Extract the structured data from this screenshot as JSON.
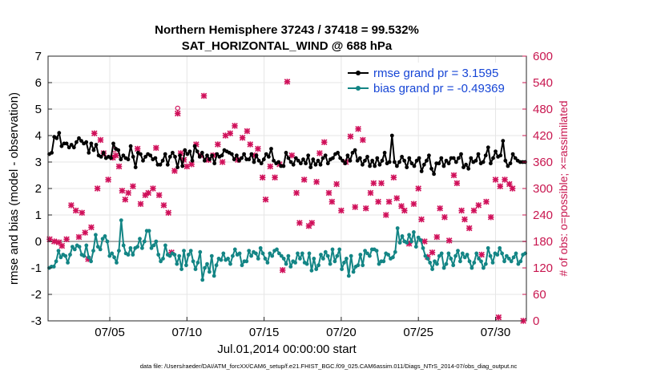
{
  "chart_data": {
    "type": "line",
    "title_line1": "Northern Hemisphere 37243 / 37418 = 99.532%",
    "title_line2": "SAT_HORIZONTAL_WIND @ 688 hPa",
    "xlabel": "Jul.01,2014 00:00:00 start",
    "ylabel": "rmse and bias (model - observation)",
    "ylabel_right": "# of obs: o=possible; ×=assimilated",
    "footnote": "data file: /Users/raeder/DAI/ATM_forcXX/CAM6_setup/f.e21.FHIST_BGC.f09_025.CAM6assim.011/Diags_NTrS_2014-07/obs_diag_output.nc",
    "xlim": [
      1,
      32
    ],
    "ylim": [
      -3,
      7
    ],
    "ylim_right": [
      0,
      600
    ],
    "xticks": [
      5,
      10,
      15,
      20,
      25,
      30
    ],
    "xtick_labels": [
      "07/05",
      "07/10",
      "07/15",
      "07/20",
      "07/25",
      "07/30"
    ],
    "yticks": [
      "-3",
      "-2",
      "-1",
      "0",
      "1",
      "2",
      "3",
      "4",
      "5",
      "6",
      "7"
    ],
    "yticks_right": [
      "0",
      "60",
      "120",
      "180",
      "240",
      "300",
      "360",
      "420",
      "480",
      "540",
      "600"
    ],
    "reference_line": 0,
    "colors": {
      "rmse": "#000000",
      "bias": "#138585",
      "obs": "#d0105a",
      "legend_text": "#1746d6",
      "zero_line": "#b0b0b0"
    },
    "series": [
      {
        "name": "rmse grand pr = 3.1595",
        "key": "rmse",
        "values": [
          3.3,
          3.35,
          3.95,
          3.9,
          4.1,
          3.6,
          3.7,
          3.7,
          3.55,
          3.65,
          3.55,
          3.75,
          3.9,
          3.8,
          3.7,
          3.75,
          3.35,
          3.7,
          3.45,
          3.65,
          3.25,
          3.2,
          3.35,
          3.15,
          3.2,
          3.15,
          3.7,
          3.5,
          3.45,
          3.1,
          3.25,
          3.15,
          3.1,
          3.6,
          3.2,
          2.8,
          3.35,
          3.3,
          3.05,
          3.2,
          3.3,
          3.25,
          3.1,
          3.15,
          2.9,
          2.9,
          3.05,
          3.3,
          2.9,
          3.2,
          3.35,
          3.2,
          2.8,
          3.25,
          2.85,
          3.45,
          3.3,
          3.4,
          3.05,
          3.6,
          3.4,
          3.2,
          3.35,
          3.05,
          3.25,
          3.1,
          3.25,
          2.95,
          3.3,
          3.2,
          3.25,
          3.45,
          3.4,
          3.35,
          3.3,
          3.1,
          3.25,
          3.05,
          3.15,
          3.3,
          3.1,
          3.1,
          3.3,
          3.0,
          3.25,
          3.05,
          2.95,
          3.1,
          3.3,
          3.2,
          3.5,
          3.05,
          2.95,
          3.0,
          2.85,
          2.85,
          3.35,
          3.15,
          3.0,
          2.9,
          3.15,
          3.05,
          2.95,
          3.1,
          2.95,
          3.25,
          2.8,
          3.1,
          2.9,
          3.05,
          2.9,
          3.15,
          3.25,
          2.95,
          3.1,
          3.15,
          3.3,
          3.35,
          3.15,
          3.05,
          2.95,
          3.25,
          3.05,
          3.35,
          3.45,
          3.05,
          3.15,
          2.9,
          3.05,
          3.2,
          2.85,
          3.05,
          2.85,
          3.15,
          2.9,
          3.05,
          3.35,
          2.95,
          3.0,
          4.0,
          3.0,
          2.85,
          3.0,
          3.2,
          3.05,
          2.8,
          3.15,
          2.95,
          2.85,
          3.05,
          3.15,
          2.65,
          2.9,
          3.05,
          3.25,
          2.75,
          2.55,
          2.95,
          2.95,
          3.15,
          2.85,
          3.05,
          2.95,
          3.15,
          3.15,
          3.0,
          3.15,
          3.3,
          2.8,
          2.9,
          2.75,
          3.15,
          3.0,
          3.05,
          3.3,
          2.95,
          3.0,
          3.25,
          3.55,
          2.95,
          3.15,
          3.4,
          3.2,
          3.25,
          3.8,
          3.05,
          2.85,
          2.95,
          3.3,
          3.15,
          3.05,
          3.0,
          3.0,
          3.0
        ]
      },
      {
        "name": "bias grand pr = -0.49369",
        "key": "bias",
        "values": [
          -1.0,
          -0.95,
          -0.95,
          -0.75,
          -0.35,
          -0.6,
          -0.5,
          -0.55,
          -0.8,
          -0.5,
          -0.2,
          -0.3,
          -0.15,
          -0.2,
          -0.5,
          -0.55,
          -0.15,
          -0.6,
          -0.75,
          -0.35,
          0.25,
          -0.2,
          -0.3,
          0.1,
          0.2,
          0.0,
          -0.55,
          -0.45,
          -0.6,
          -0.8,
          -0.35,
          0.8,
          -0.15,
          -0.45,
          -0.5,
          -0.25,
          -0.5,
          -0.25,
          -0.2,
          0.1,
          -0.25,
          0.0,
          0.4,
          0.4,
          -0.25,
          -0.15,
          0.0,
          -0.5,
          -0.75,
          -0.65,
          -0.15,
          -0.5,
          -0.55,
          -0.45,
          -0.5,
          -0.85,
          -0.55,
          -1.05,
          -0.35,
          -0.9,
          -0.5,
          -0.35,
          -0.75,
          -1.05,
          -0.8,
          -0.4,
          -1.45,
          -1.0,
          -0.85,
          -1.15,
          -0.55,
          -1.3,
          -0.9,
          -0.65,
          -0.7,
          -0.45,
          -0.7,
          -0.65,
          -0.85,
          -0.55,
          -0.3,
          -0.5,
          -0.45,
          -0.9,
          -0.75,
          -0.75,
          -0.35,
          -0.55,
          -0.4,
          -0.45,
          -0.65,
          -0.25,
          -0.45,
          -0.65,
          -0.8,
          -0.45,
          -0.55,
          -0.35,
          -0.3,
          -0.45,
          -0.55,
          -0.65,
          -0.85,
          -0.55,
          -0.95,
          -0.75,
          -0.8,
          -0.45,
          -0.65,
          -0.45,
          -0.8,
          -0.85,
          -0.45,
          -1.1,
          -0.65,
          -1.05,
          -0.9,
          -0.5,
          -0.65,
          -0.4,
          -0.55,
          -0.85,
          -0.3,
          -0.75,
          -0.55,
          -0.3,
          -1.05,
          -0.8,
          -0.65,
          -1.3,
          -0.55,
          -1.15,
          -0.95,
          -0.9,
          -0.5,
          -0.9,
          -0.35,
          -0.45,
          -0.55,
          -0.3,
          -0.3,
          -0.35,
          -0.85,
          -0.75,
          -0.75,
          -0.45,
          -0.5,
          -0.65,
          -0.6,
          -0.4,
          0.5,
          -0.05,
          0.2,
          0.0,
          -0.05,
          0.25,
          0.0,
          0.35,
          -0.2,
          0.15,
          0.05,
          -0.25,
          -0.55,
          -0.65,
          -0.8,
          -1.05,
          -0.75,
          -0.85,
          -0.55,
          -0.45,
          -1.0,
          -0.85,
          -0.45,
          -0.65,
          -0.9,
          -0.55,
          -0.35,
          -0.75,
          -0.45,
          -0.6,
          -0.5,
          -0.75,
          -1.0,
          -0.8,
          -0.45,
          -0.65,
          -0.75,
          -1.0,
          -0.85,
          -0.25,
          -0.55,
          -0.8,
          -0.45,
          -0.5,
          -0.25,
          -0.45,
          -0.75,
          -0.55,
          -0.65,
          -0.75,
          -0.6,
          -0.45,
          -0.85,
          -0.75,
          -0.5,
          -0.45
        ]
      },
      {
        "name": "# of obs (possible/assimilated)",
        "key": "obs",
        "points": [
          [
            1.1,
            185
          ],
          [
            1.4,
            180
          ],
          [
            1.7,
            178
          ],
          [
            1.9,
            170
          ],
          [
            2.2,
            185
          ],
          [
            2.5,
            262
          ],
          [
            2.8,
            250
          ],
          [
            3.0,
            190
          ],
          [
            3.2,
            245
          ],
          [
            3.4,
            200
          ],
          [
            3.6,
            140
          ],
          [
            3.8,
            212
          ],
          [
            4.0,
            425
          ],
          [
            4.2,
            300
          ],
          [
            4.4,
            410
          ],
          [
            4.6,
            380
          ],
          [
            4.9,
            320
          ],
          [
            5.2,
            370
          ],
          [
            5.4,
            375
          ],
          [
            5.6,
            350
          ],
          [
            5.8,
            295
          ],
          [
            6.0,
            275
          ],
          [
            6.2,
            290
          ],
          [
            6.5,
            305
          ],
          [
            6.8,
            390
          ],
          [
            7.0,
            265
          ],
          [
            7.3,
            285
          ],
          [
            7.5,
            290
          ],
          [
            7.8,
            300
          ],
          [
            8.0,
            392
          ],
          [
            8.2,
            285
          ],
          [
            8.5,
            262
          ],
          [
            8.8,
            245
          ],
          [
            9.0,
            155
          ],
          [
            9.2,
            340
          ],
          [
            9.4,
            470
          ],
          [
            9.6,
            380
          ],
          [
            9.8,
            365
          ],
          [
            10.0,
            350
          ],
          [
            10.3,
            355
          ],
          [
            10.6,
            400
          ],
          [
            10.9,
            375
          ],
          [
            11.1,
            510
          ],
          [
            11.4,
            365
          ],
          [
            11.7,
            375
          ],
          [
            12.0,
            400
          ],
          [
            12.3,
            360
          ],
          [
            12.5,
            420
          ],
          [
            12.8,
            425
          ],
          [
            13.1,
            442
          ],
          [
            13.3,
            365
          ],
          [
            13.6,
            415
          ],
          [
            13.9,
            430
          ],
          [
            14.1,
            400
          ],
          [
            14.4,
            375
          ],
          [
            14.6,
            390
          ],
          [
            14.9,
            325
          ],
          [
            15.1,
            275
          ],
          [
            15.4,
            350
          ],
          [
            15.7,
            325
          ],
          [
            16.0,
            355
          ],
          [
            16.2,
            115
          ],
          [
            16.5,
            542
          ],
          [
            16.8,
            375
          ],
          [
            17.1,
            290
          ],
          [
            17.3,
            222
          ],
          [
            17.6,
            320
          ],
          [
            17.9,
            215
          ],
          [
            18.1,
            222
          ],
          [
            18.4,
            315
          ],
          [
            18.6,
            380
          ],
          [
            18.9,
            405
          ],
          [
            19.2,
            290
          ],
          [
            19.4,
            270
          ],
          [
            19.7,
            310
          ],
          [
            20.0,
            250
          ],
          [
            20.3,
            360
          ],
          [
            20.6,
            418
          ],
          [
            20.9,
            258
          ],
          [
            21.1,
            435
          ],
          [
            21.4,
            410
          ],
          [
            21.6,
            255
          ],
          [
            21.9,
            290
          ],
          [
            22.1,
            312
          ],
          [
            22.4,
            270
          ],
          [
            22.6,
            312
          ],
          [
            22.9,
            240
          ],
          [
            23.1,
            270
          ],
          [
            23.4,
            325
          ],
          [
            23.6,
            278
          ],
          [
            23.9,
            260
          ],
          [
            24.1,
            250
          ],
          [
            24.4,
            175
          ],
          [
            24.7,
            265
          ],
          [
            25.0,
            300
          ],
          [
            25.2,
            230
          ],
          [
            25.4,
            180
          ],
          [
            25.6,
            145
          ],
          [
            25.9,
            155
          ],
          [
            26.2,
            190
          ],
          [
            26.4,
            255
          ],
          [
            26.7,
            235
          ],
          [
            27.0,
            182
          ],
          [
            27.3,
            330
          ],
          [
            27.5,
            312
          ],
          [
            27.8,
            250
          ],
          [
            28.0,
            230
          ],
          [
            28.3,
            210
          ],
          [
            28.6,
            250
          ],
          [
            28.9,
            262
          ],
          [
            29.1,
            150
          ],
          [
            29.4,
            270
          ],
          [
            29.7,
            235
          ],
          [
            30.0,
            320
          ],
          [
            30.3,
            305
          ],
          [
            30.6,
            320
          ],
          [
            30.9,
            310
          ],
          [
            31.1,
            300
          ],
          [
            30.2,
            8
          ],
          [
            31.8,
            0
          ]
        ]
      }
    ],
    "possible_only_points": [
      [
        9.4,
        482
      ],
      [
        5.3,
        388
      ]
    ]
  }
}
